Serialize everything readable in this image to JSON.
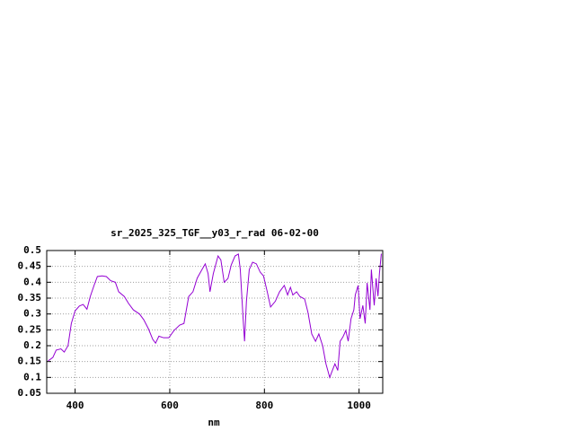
{
  "chart_data": {
    "type": "line",
    "title": "sr_2025_325_TGF__y03_r_rad 06-02-00",
    "x_label": "nm",
    "color": "#9400d3",
    "grid": true,
    "xlim": [
      340,
      1050
    ],
    "xticks": [
      400,
      600,
      800,
      1000
    ],
    "ylim": [
      0.05,
      0.5
    ],
    "yticks": [
      0.05,
      0.1,
      0.15,
      0.2,
      0.25,
      0.3,
      0.35,
      0.4,
      0.45,
      0.5
    ],
    "x": [
      343,
      353,
      360,
      370,
      377,
      385,
      392,
      400,
      409,
      417,
      425,
      432,
      440,
      447,
      457,
      466,
      475,
      485,
      492,
      504,
      513,
      523,
      536,
      545,
      555,
      564,
      570,
      577,
      587,
      598,
      609,
      621,
      630,
      640,
      649,
      658,
      668,
      675,
      681,
      685,
      692,
      702,
      708,
      715,
      723,
      730,
      738,
      745,
      749,
      755,
      758,
      762,
      768,
      775,
      783,
      791,
      798,
      806,
      813,
      823,
      832,
      842,
      849,
      855,
      860,
      868,
      875,
      885,
      892,
      900,
      908,
      915,
      923,
      930,
      938,
      943,
      949,
      955,
      960,
      966,
      972,
      977,
      983,
      989,
      992,
      998,
      1002,
      1008,
      1013,
      1017,
      1023,
      1026,
      1032,
      1036,
      1040,
      1043,
      1047
    ],
    "values": [
      0.152,
      0.163,
      0.186,
      0.19,
      0.18,
      0.2,
      0.27,
      0.31,
      0.325,
      0.33,
      0.315,
      0.355,
      0.39,
      0.418,
      0.42,
      0.418,
      0.405,
      0.4,
      0.37,
      0.355,
      0.333,
      0.313,
      0.3,
      0.282,
      0.253,
      0.22,
      0.208,
      0.23,
      0.225,
      0.225,
      0.248,
      0.265,
      0.27,
      0.355,
      0.37,
      0.413,
      0.44,
      0.458,
      0.427,
      0.37,
      0.427,
      0.483,
      0.47,
      0.4,
      0.412,
      0.455,
      0.483,
      0.489,
      0.44,
      0.285,
      0.214,
      0.34,
      0.44,
      0.463,
      0.458,
      0.432,
      0.42,
      0.37,
      0.322,
      0.34,
      0.37,
      0.39,
      0.36,
      0.384,
      0.36,
      0.37,
      0.355,
      0.347,
      0.305,
      0.237,
      0.214,
      0.237,
      0.2,
      0.143,
      0.1,
      0.12,
      0.143,
      0.122,
      0.214,
      0.228,
      0.248,
      0.214,
      0.285,
      0.313,
      0.36,
      0.39,
      0.285,
      0.327,
      0.27,
      0.398,
      0.313,
      0.44,
      0.327,
      0.412,
      0.356,
      0.427,
      0.49
    ]
  }
}
